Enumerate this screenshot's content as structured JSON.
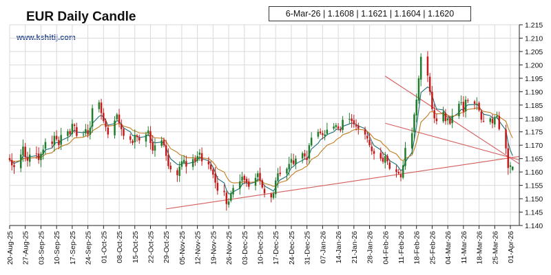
{
  "header": {
    "title": "EUR Daily Candle",
    "ohlc": "6-Mar-26 | 1.1608 | 1.1621 | 1.1604 | 1.1620",
    "site": "www.kshitij.com"
  },
  "colors": {
    "up": "#1e7d2a",
    "down": "#c61a1a",
    "ema_fast": "#1a6b78",
    "ema_slow": "#c27a1e",
    "trendline": "#d45a5a",
    "grid": "#d9d9d9"
  },
  "chart_data": {
    "type": "candlestick",
    "title": "EUR Daily Candle",
    "ylim": [
      1.14,
      1.215
    ],
    "y_ticks": [
      "1.140",
      "1.145",
      "1.150",
      "1.155",
      "1.160",
      "1.165",
      "1.170",
      "1.175",
      "1.180",
      "1.185",
      "1.190",
      "1.195",
      "1.200",
      "1.205",
      "1.210",
      "1.215"
    ],
    "x_ticks": [
      "20-Aug-25",
      "27-Aug-25",
      "03-Sep-25",
      "10-Sep-25",
      "17-Sep-25",
      "24-Sep-25",
      "01-Oct-25",
      "08-Oct-25",
      "15-Oct-25",
      "22-Oct-25",
      "29-Oct-25",
      "05-Nov-25",
      "12-Nov-25",
      "19-Nov-25",
      "26-Nov-25",
      "03-Dec-25",
      "10-Dec-25",
      "17-Dec-25",
      "24-Dec-25",
      "31-Dec-25",
      "07-Jan-26",
      "14-Jan-26",
      "21-Jan-26",
      "28-Jan-26",
      "04-Feb-26",
      "11-Feb-26",
      "18-Feb-26",
      "25-Feb-26",
      "04-Mar-26",
      "11-Mar-26",
      "18-Mar-26",
      "25-Mar-26",
      "01-Apr-26"
    ],
    "x_start": "2025-08-20",
    "grid": true,
    "series": [
      {
        "name": "",
        "closes": [
          1.1645,
          1.1625,
          1.1618,
          1.1665,
          1.1695,
          1.1655,
          1.1642,
          1.1665,
          1.1668,
          1.1645,
          1.1668,
          1.1684,
          1.1712,
          1.1705,
          1.1735,
          1.1722,
          1.17,
          1.1738,
          1.1752,
          1.1742,
          1.178,
          1.1772,
          1.1735,
          1.174,
          1.176,
          1.174,
          1.1765,
          1.1838,
          1.186,
          1.182,
          1.179,
          1.1768,
          1.174,
          1.1792,
          1.1815,
          1.1782,
          1.176,
          1.1735,
          1.172,
          1.1708,
          1.1738,
          1.173,
          1.1718,
          1.174,
          1.1755,
          1.1708,
          1.168,
          1.17,
          1.1718,
          1.17,
          1.166,
          1.1622,
          1.161,
          1.1588,
          1.162,
          1.164,
          1.1645,
          1.162,
          1.1648,
          1.164,
          1.166,
          1.1672,
          1.164,
          1.1628,
          1.161,
          1.159,
          1.156,
          1.153,
          1.1525,
          1.148,
          1.149,
          1.152,
          1.154,
          1.1565,
          1.1582,
          1.157,
          1.156,
          1.1545,
          1.1578,
          1.1595,
          1.1568,
          1.1542,
          1.152,
          1.1505,
          1.152,
          1.1568,
          1.1595,
          1.1592,
          1.1612,
          1.163,
          1.1648,
          1.163,
          1.165,
          1.167,
          1.1658,
          1.1645,
          1.17,
          1.1728,
          1.175,
          1.1745,
          1.1738,
          1.174,
          1.1758,
          1.177,
          1.1775,
          1.1762,
          1.1755,
          1.1795,
          1.1798,
          1.179,
          1.1778,
          1.177,
          1.1762,
          1.174,
          1.1725,
          1.17,
          1.1678,
          1.1668,
          1.165,
          1.1638,
          1.166,
          1.164,
          1.1612,
          1.16,
          1.1595,
          1.158,
          1.1625,
          1.169,
          1.1745,
          1.1815,
          1.187,
          1.195,
          1.203,
          1.196,
          1.19,
          1.1835,
          1.18,
          1.179,
          1.1825,
          1.179,
          1.18,
          1.178,
          1.181,
          1.1855,
          1.186,
          1.1825,
          1.187,
          1.1865,
          1.1855,
          1.1855,
          1.183,
          1.1795,
          1.179,
          1.18,
          1.1782,
          1.1805,
          1.181,
          1.176,
          1.1688,
          1.1615,
          1.1625,
          1.162
        ]
      }
    ],
    "indicators": [
      "EMA fast",
      "EMA slow"
    ],
    "trendlines": [
      {
        "from": [
          "2025-10-29",
          1.1462
        ],
        "to": [
          "2026-04-05",
          1.1658
        ]
      },
      {
        "from": [
          "2026-02-04",
          1.1782
        ],
        "to": [
          "2026-04-05",
          1.1645
        ]
      },
      {
        "from": [
          "2026-02-04",
          1.1958
        ],
        "to": [
          "2026-04-05",
          1.163
        ]
      }
    ]
  }
}
